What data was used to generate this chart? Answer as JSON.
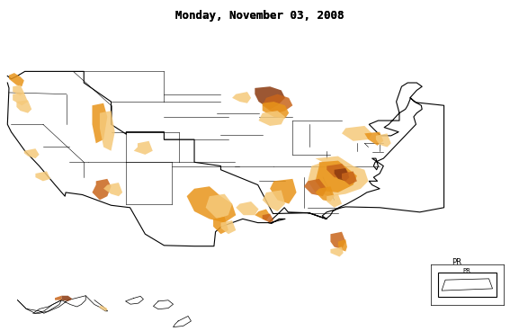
{
  "title": "Monday, November 03, 2008",
  "title_fontsize": 9,
  "background_color": "#ffffff",
  "border_color": "#000000",
  "colors": {
    "much_below_normal": "#8B3A0F",
    "below_normal": "#C8651B",
    "low": "#E8941A",
    "light_orange": "#F5C97A"
  },
  "figsize": [
    5.77,
    3.68
  ],
  "dpi": 100,
  "map_extent": [
    -125,
    -66.5,
    24.5,
    50
  ],
  "pr_label": "PR"
}
